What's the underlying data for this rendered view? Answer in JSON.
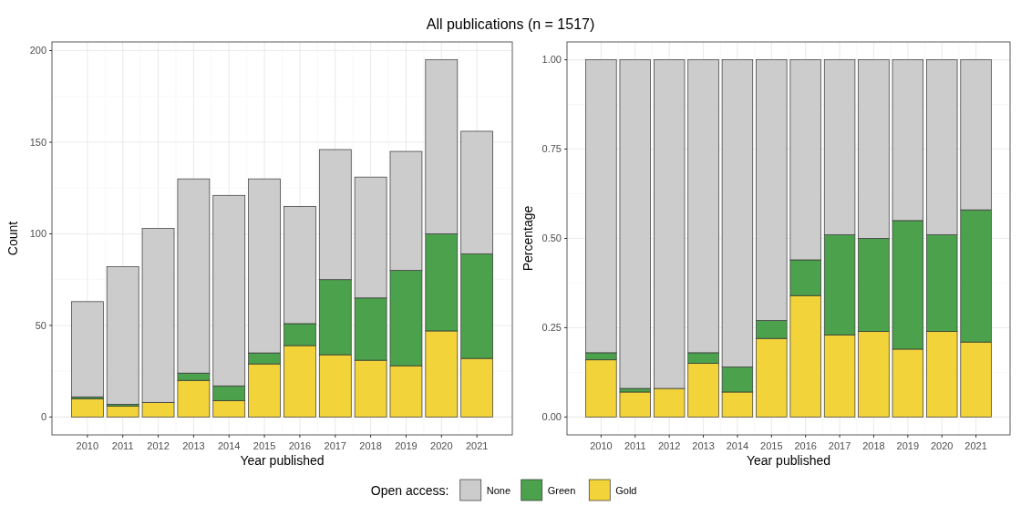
{
  "chart_data": [
    {
      "type": "bar",
      "title": "All publications (n = 1517)",
      "xlabel": "Year published",
      "ylabel": "Count",
      "stacked": true,
      "grid": true,
      "legend": "bottom",
      "legend_title": "Open access:",
      "categories": [
        "2010",
        "2011",
        "2012",
        "2013",
        "2014",
        "2015",
        "2016",
        "2017",
        "2018",
        "2019",
        "2020",
        "2021"
      ],
      "ylim": [
        -9.75,
        204.75
      ],
      "yticks": [
        0,
        50,
        100,
        150,
        200
      ],
      "series": [
        {
          "name": "Gold",
          "color": "#f2d43a",
          "values": [
            10,
            6,
            8,
            20,
            9,
            29,
            39,
            34,
            31,
            28,
            47,
            32
          ]
        },
        {
          "name": "Green",
          "color": "#4ca14c",
          "values": [
            1,
            1,
            0,
            4,
            8,
            6,
            12,
            41,
            34,
            52,
            53,
            57
          ]
        },
        {
          "name": "None",
          "color": "#cccccc",
          "values": [
            52,
            75,
            95,
            106,
            104,
            95,
            64,
            71,
            66,
            65,
            95,
            67
          ]
        }
      ]
    },
    {
      "type": "bar",
      "xlabel": "Year published",
      "ylabel": "Percentage",
      "stacked": true,
      "grid": true,
      "categories": [
        "2010",
        "2011",
        "2012",
        "2013",
        "2014",
        "2015",
        "2016",
        "2017",
        "2018",
        "2019",
        "2020",
        "2021"
      ],
      "ylim": [
        -0.05,
        1.05
      ],
      "yticks": [
        {
          "value": 0,
          "label": "0.00"
        },
        {
          "value": 0.25,
          "label": "0.25"
        },
        {
          "value": 0.5,
          "label": "0.50"
        },
        {
          "value": 0.75,
          "label": "0.75"
        },
        {
          "value": 1,
          "label": "1.00"
        }
      ],
      "series": [
        {
          "color": "#f2d43a",
          "values": [
            0.16,
            0.07,
            0.08,
            0.15,
            0.07,
            0.22,
            0.34,
            0.23,
            0.24,
            0.19,
            0.24,
            0.21
          ]
        },
        {
          "color": "#4ca14c",
          "values": [
            0.02,
            0.01,
            0,
            0.03,
            0.07,
            0.05,
            0.1,
            0.28,
            0.26,
            0.36,
            0.27,
            0.37
          ]
        },
        {
          "color": "#cccccc",
          "values": [
            0.82,
            0.92,
            0.92,
            0.82,
            0.86,
            0.73,
            0.56,
            0.49,
            0.5,
            0.45,
            0.49,
            0.42
          ]
        }
      ]
    }
  ]
}
